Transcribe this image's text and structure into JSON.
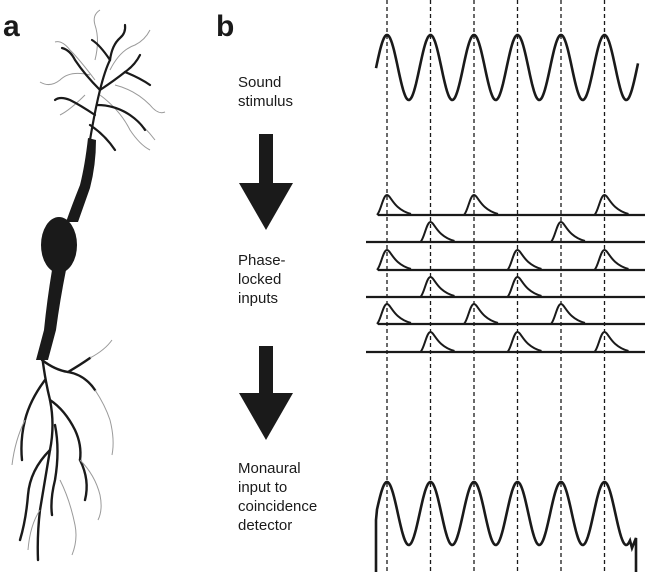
{
  "panels": {
    "a_label": "a",
    "b_label": "b"
  },
  "steps": {
    "sound_stimulus": "Sound\nstimulus",
    "phase_locked": "Phase-\nlocked\ninputs",
    "monaural": "Monaural\ninput to\ncoincidence\ndetector"
  },
  "colors": {
    "ink": "#1a1a1a",
    "dendrite_light": "#9a9a9a"
  },
  "stimulus_cycles": 6,
  "input_rows": [
    [
      0,
      2,
      5
    ],
    [
      1,
      4
    ],
    [
      0,
      3,
      5
    ],
    [
      1,
      3
    ],
    [
      0,
      2,
      4
    ],
    [
      1,
      3,
      5
    ]
  ],
  "icons": [
    "neuron-drawing",
    "down-arrow-icon",
    "dashed-phase-line"
  ]
}
